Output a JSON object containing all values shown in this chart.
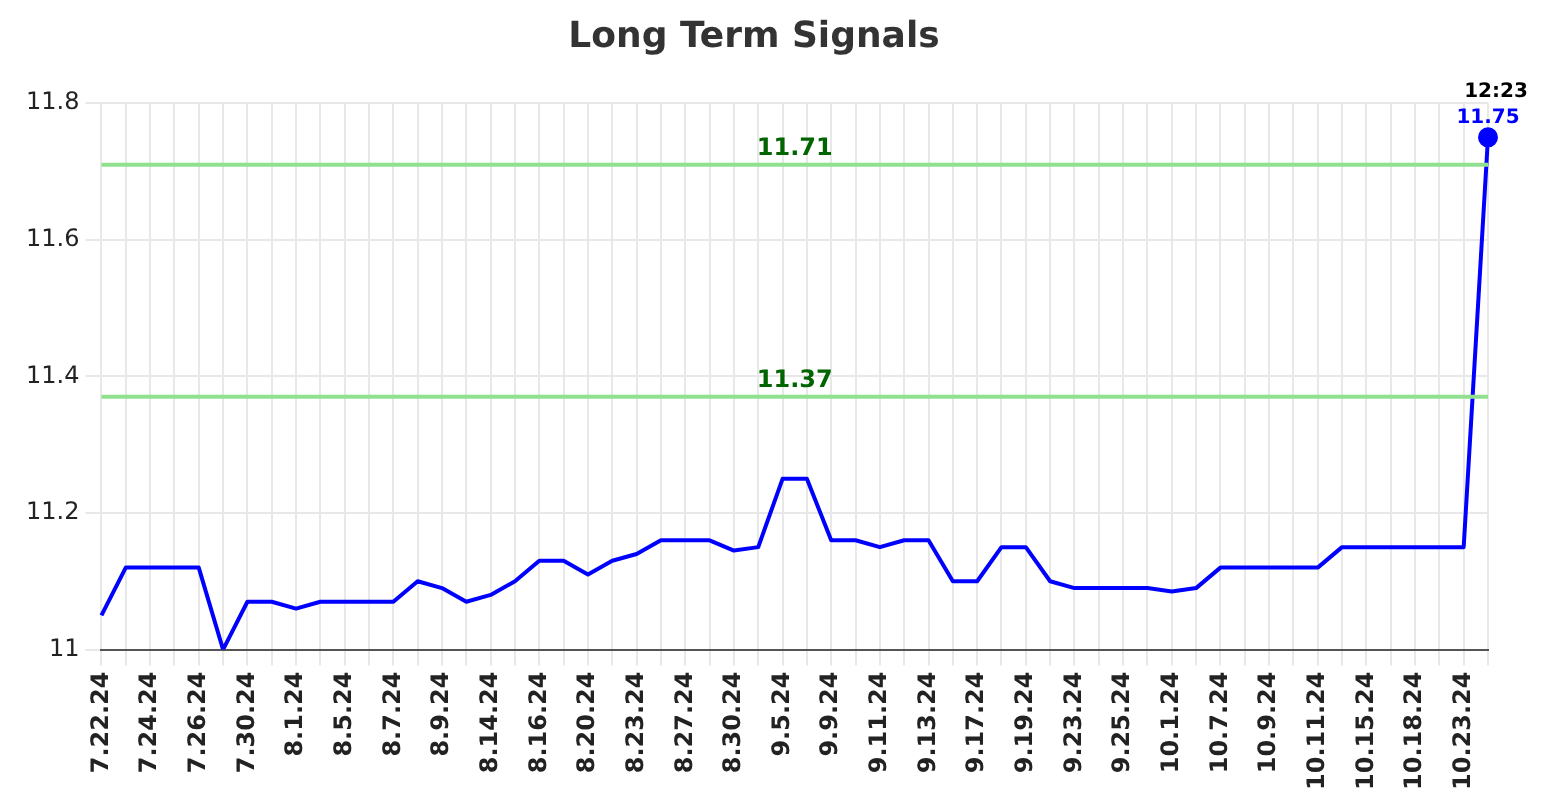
{
  "chart_data": {
    "type": "line",
    "title": "Long Term Signals",
    "categories": [
      "7.22.24",
      null,
      "7.24.24",
      null,
      "7.26.24",
      null,
      "7.30.24",
      null,
      "8.1.24",
      null,
      "8.5.24",
      null,
      "8.7.24",
      null,
      "8.9.24",
      null,
      "8.14.24",
      null,
      "8.16.24",
      null,
      "8.20.24",
      null,
      "8.23.24",
      null,
      "8.27.24",
      null,
      "8.30.24",
      null,
      "9.5.24",
      null,
      "9.9.24",
      null,
      "9.11.24",
      null,
      "9.13.24",
      null,
      "9.17.24",
      null,
      "9.19.24",
      null,
      "9.23.24",
      null,
      "9.25.24",
      null,
      "10.1.24",
      null,
      "10.7.24",
      null,
      "10.9.24",
      null,
      "10.11.24",
      null,
      "10.15.24",
      null,
      "10.18.24",
      null,
      "10.23.24",
      null
    ],
    "series": [
      {
        "color": "#0000ff",
        "values": [
          11.05,
          11.12,
          11.12,
          11.12,
          11.12,
          11.0,
          11.07,
          11.07,
          11.06,
          11.07,
          11.07,
          11.07,
          11.07,
          11.1,
          11.09,
          11.07,
          11.08,
          11.1,
          11.13,
          11.13,
          11.11,
          11.13,
          11.14,
          11.16,
          11.16,
          11.16,
          11.145,
          11.15,
          11.25,
          11.25,
          11.16,
          11.16,
          11.15,
          11.16,
          11.16,
          11.1,
          11.1,
          11.15,
          11.15,
          11.1,
          11.09,
          11.09,
          11.09,
          11.09,
          11.085,
          11.09,
          11.12,
          11.12,
          11.12,
          11.12,
          11.12,
          11.15,
          11.15,
          11.15,
          11.15,
          11.15,
          11.15,
          11.75
        ],
        "value_labels": [
          null,
          null,
          null,
          null,
          null,
          null,
          null,
          null,
          null,
          null,
          null,
          null,
          null,
          null,
          null,
          null,
          null,
          null,
          null,
          null,
          null,
          null,
          null,
          null,
          null,
          null,
          null,
          null,
          null,
          null,
          null,
          null,
          null,
          null,
          null,
          null,
          null,
          null,
          null,
          null,
          null,
          null,
          null,
          null,
          null,
          null,
          null,
          null,
          null,
          null,
          null,
          null,
          null,
          null,
          null,
          null,
          null,
          "11.75"
        ]
      }
    ],
    "ylim": [
      11,
      11.8
    ],
    "yticks": [
      11,
      11.2,
      11.4,
      11.6,
      11.8
    ],
    "grid": true,
    "legend": false,
    "marker": "none",
    "line_style": "solid",
    "ref_lines": [
      {
        "axis": "y",
        "value": 11.71,
        "label": "11.71",
        "color": "#90e090"
      },
      {
        "axis": "y",
        "value": 11.37,
        "label": "11.37",
        "color": "#90e090"
      }
    ],
    "annotations": [
      "12:23"
    ]
  }
}
